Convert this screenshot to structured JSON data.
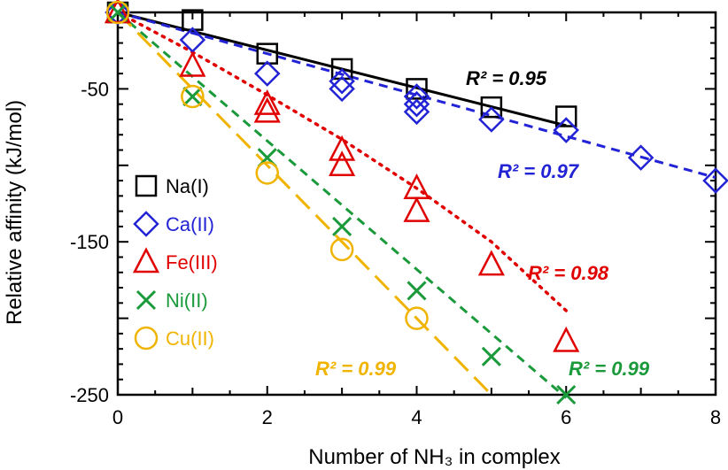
{
  "chart_data": {
    "type": "scatter",
    "title": "",
    "xlabel": "Number of NH₃ in complex",
    "ylabel": "Relative affinity (kJ/mol)",
    "xlim": [
      0,
      8
    ],
    "ylim": [
      -250,
      0
    ],
    "xticks": [
      "0",
      "2",
      "4",
      "6",
      "8"
    ],
    "yticks": [
      "-50",
      "-150",
      "-250"
    ],
    "legend_position": "left",
    "series": [
      {
        "name": "Na(I)",
        "color": "#000000",
        "marker": "square",
        "line_style": "solid",
        "x": [
          0,
          1,
          2,
          3,
          4,
          5,
          6
        ],
        "y": [
          0,
          -5,
          -27,
          -37,
          -50,
          -62,
          -68
        ],
        "fit": {
          "x": [
            0,
            6
          ],
          "y": [
            0,
            -74
          ]
        },
        "r2_label": "R² = 0.95"
      },
      {
        "name": "Ca(II)",
        "color": "#2323d6",
        "marker": "diamond",
        "line_style": "dashed",
        "x": [
          0,
          1,
          2,
          3,
          3,
          4,
          4,
          4,
          5,
          6,
          7,
          8
        ],
        "y": [
          0,
          -18,
          -40,
          -45,
          -50,
          -55,
          -60,
          -65,
          -70,
          -77,
          -95,
          -110
        ],
        "fit": {
          "x": [
            0,
            8
          ],
          "y": [
            0,
            -108
          ]
        },
        "r2_label": "R² = 0.97"
      },
      {
        "name": "Fe(III)",
        "color": "#e00000",
        "marker": "triangle",
        "line_style": "dotted",
        "x": [
          0,
          1,
          2,
          2,
          3,
          3,
          4,
          4,
          5,
          6
        ],
        "y": [
          0,
          -35,
          -60,
          -65,
          -90,
          -100,
          -115,
          -130,
          -165,
          -215
        ],
        "fit": {
          "x": [
            0,
            1,
            2,
            3,
            4,
            5,
            6
          ],
          "y": [
            0,
            -26,
            -54,
            -83,
            -115,
            -150,
            -195
          ]
        },
        "r2_label": "R² = 0.98"
      },
      {
        "name": "Ni(II)",
        "color": "#1a9a3a",
        "marker": "x",
        "line_style": "dashed",
        "x": [
          0,
          1,
          2,
          3,
          4,
          5,
          6
        ],
        "y": [
          0,
          -55,
          -95,
          -140,
          -182,
          -225,
          -250
        ],
        "fit": {
          "x": [
            0,
            6
          ],
          "y": [
            0,
            -252
          ]
        },
        "r2_label": "R² = 0.99"
      },
      {
        "name": "Cu(II)",
        "color": "#f0b400",
        "marker": "circle",
        "line_style": "longdash",
        "x": [
          0,
          1,
          2,
          3,
          4
        ],
        "y": [
          0,
          -55,
          -105,
          -155,
          -200
        ],
        "fit": {
          "x": [
            0,
            5
          ],
          "y": [
            0,
            -250
          ]
        },
        "r2_label": "R² = 0.99"
      }
    ]
  }
}
